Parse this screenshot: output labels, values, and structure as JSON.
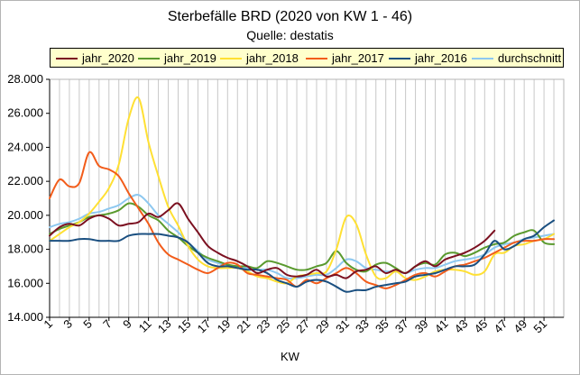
{
  "chart_data": {
    "type": "line",
    "title": "Sterbefälle BRD  (2020 von KW 1 - 46)",
    "subtitle": "Quelle: destatis",
    "xlabel": "KW",
    "ylabel": "",
    "ylim": [
      14000,
      28000
    ],
    "y_ticks": [
      "14.000",
      "16.000",
      "18.000",
      "20.000",
      "22.000",
      "24.000",
      "26.000",
      "28.000"
    ],
    "y_tick_values": [
      14000,
      16000,
      18000,
      20000,
      22000,
      24000,
      26000,
      28000
    ],
    "x_ticks": [
      "1",
      "3",
      "5",
      "7",
      "9",
      "11",
      "13",
      "15",
      "17",
      "19",
      "21",
      "23",
      "25",
      "27",
      "29",
      "31",
      "33",
      "35",
      "37",
      "39",
      "41",
      "43",
      "45",
      "47",
      "49",
      "51"
    ],
    "xlim": [
      1,
      53
    ],
    "grid": "vertical",
    "legend_position": "top",
    "series": [
      {
        "name": "jahr_2020",
        "color": "#7b1020",
        "values": [
          18800,
          19300,
          19500,
          19400,
          19800,
          20000,
          19800,
          19400,
          19500,
          19600,
          20100,
          19900,
          20300,
          20700,
          19800,
          19000,
          18200,
          17800,
          17500,
          17300,
          17000,
          16600,
          16800,
          16900,
          16500,
          16400,
          16500,
          16800,
          16400,
          16500,
          16300,
          16700,
          16800,
          17000,
          16600,
          16800,
          16600,
          17000,
          17300,
          17000,
          17400,
          17600,
          17800,
          18100,
          18500,
          19100
        ]
      },
      {
        "name": "jahr_2019",
        "color": "#5a9a2e",
        "values": [
          18900,
          19200,
          19400,
          19600,
          19900,
          20000,
          20100,
          20300,
          20700,
          20500,
          20000,
          19700,
          19100,
          18700,
          18200,
          17800,
          17500,
          17300,
          17100,
          17000,
          17000,
          16900,
          17300,
          17200,
          17000,
          16800,
          16800,
          17000,
          17200,
          17900,
          17200,
          16800,
          16700,
          17100,
          17200,
          16900,
          16600,
          17000,
          17200,
          17100,
          17700,
          17800,
          17600,
          17800,
          18100,
          18300,
          18400,
          18800,
          19000,
          19100,
          18400,
          18300
        ]
      },
      {
        "name": "jahr_2018",
        "color": "#ffe033",
        "values": [
          18500,
          18900,
          19300,
          19600,
          20100,
          20800,
          21600,
          23000,
          25700,
          26900,
          24300,
          22300,
          20500,
          19400,
          18200,
          17400,
          17000,
          16900,
          16900,
          16900,
          16700,
          16400,
          16300,
          16100,
          16000,
          16400,
          16500,
          16600,
          16700,
          18000,
          19900,
          19500,
          17700,
          16400,
          16300,
          16700,
          16300,
          16200,
          16400,
          16700,
          16800,
          16800,
          16700,
          16500,
          16700,
          17700,
          17800,
          18200,
          18300,
          18500,
          18600,
          18900
        ]
      },
      {
        "name": "jahr_2017",
        "color": "#f25c1a",
        "values": [
          21000,
          22100,
          21700,
          21900,
          23700,
          22900,
          22700,
          22300,
          21300,
          20400,
          19500,
          18400,
          17700,
          17400,
          17100,
          16800,
          16600,
          16900,
          17200,
          17100,
          16600,
          16500,
          16400,
          16300,
          16200,
          15800,
          16200,
          16000,
          16300,
          16600,
          16900,
          16600,
          16100,
          15900,
          15700,
          15900,
          16200,
          16500,
          16600,
          16400,
          16700,
          17000,
          17100,
          17300,
          17500,
          17800,
          18100,
          18400,
          18500,
          18500,
          18600,
          18600
        ]
      },
      {
        "name": "jahr_2016",
        "color": "#1a4f80",
        "values": [
          18500,
          18500,
          18500,
          18600,
          18600,
          18500,
          18500,
          18500,
          18800,
          18900,
          18900,
          18900,
          18800,
          18700,
          18400,
          17800,
          17200,
          17000,
          17000,
          16900,
          16800,
          16800,
          16600,
          16200,
          16000,
          15800,
          16100,
          16200,
          16100,
          15800,
          15500,
          15600,
          15600,
          15800,
          15900,
          16000,
          16100,
          16400,
          16500,
          16600,
          16800,
          17000,
          17000,
          17100,
          17700,
          18500,
          18000,
          18200,
          18600,
          18800,
          19300,
          19700
        ]
      },
      {
        "name": "durchschnitt",
        "color": "#8dc8f0",
        "values": [
          19300,
          19500,
          19600,
          19800,
          20100,
          20200,
          20400,
          20600,
          21000,
          21200,
          20700,
          20000,
          19500,
          19000,
          18400,
          17900,
          17400,
          17200,
          17000,
          17000,
          16900,
          16800,
          16800,
          16600,
          16300,
          16300,
          16400,
          16500,
          16500,
          16900,
          17400,
          17300,
          16900,
          16800,
          16700,
          16700,
          16600,
          16800,
          16900,
          16900,
          17100,
          17300,
          17400,
          17500,
          17700,
          18100,
          18300,
          18400,
          18600,
          18700,
          18800,
          18900
        ]
      }
    ]
  }
}
